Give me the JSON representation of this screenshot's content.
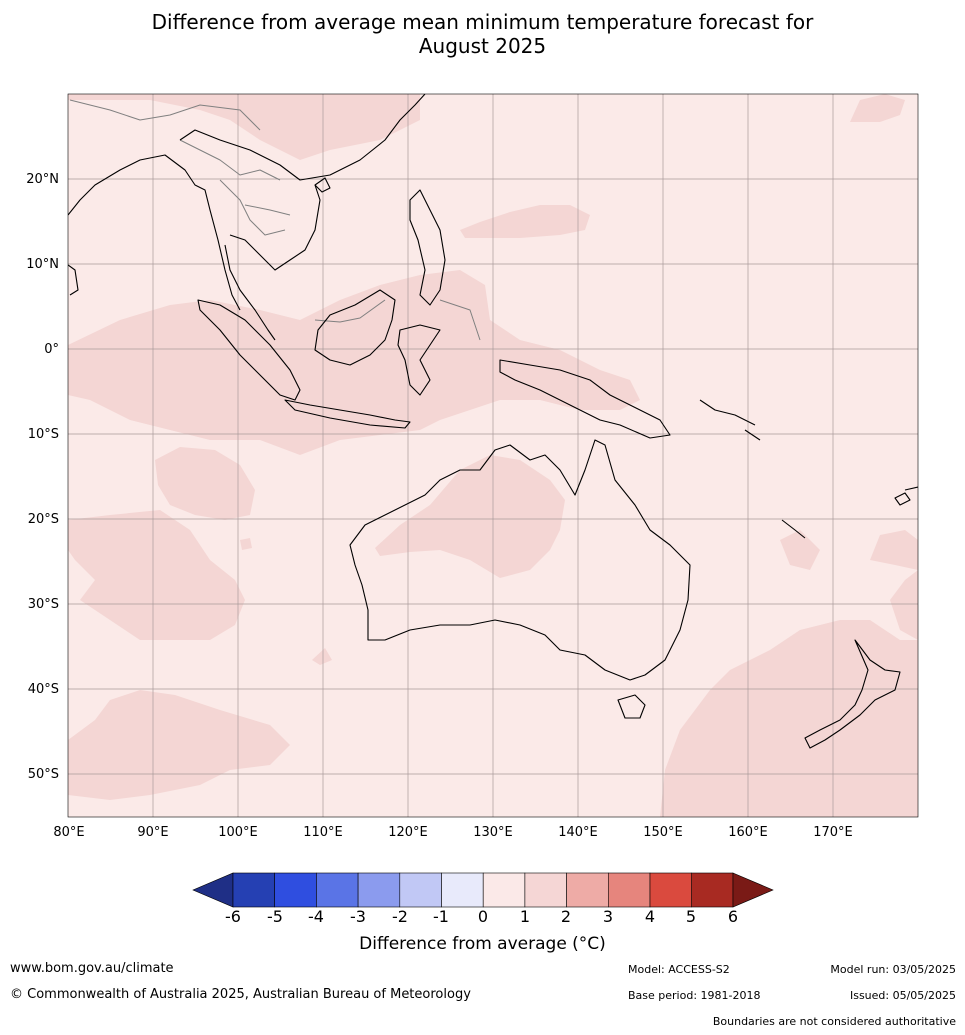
{
  "title": {
    "line1": "Difference from average mean minimum temperature forecast for",
    "line2": "August 2025"
  },
  "axes": {
    "lat_labels": [
      "20°N",
      "10°N",
      "0°",
      "10°S",
      "20°S",
      "30°S",
      "40°S",
      "50°S"
    ],
    "lon_labels": [
      "80°E",
      "90°E",
      "100°E",
      "110°E",
      "120°E",
      "130°E",
      "140°E",
      "150°E",
      "160°E",
      "170°E"
    ]
  },
  "colorbar": {
    "tick_labels": [
      "-6",
      "-5",
      "-4",
      "-3",
      "-2",
      "-1",
      "0",
      "1",
      "2",
      "3",
      "4",
      "5",
      "6"
    ],
    "colors": [
      "#1f2f86",
      "#2540b3",
      "#2f4ee0",
      "#5a74e6",
      "#8b9bee",
      "#c1c8f5",
      "#e8eafb",
      "#fbe9e8",
      "#f5d6d5",
      "#eeaba6",
      "#e6857d",
      "#da4a3e",
      "#a82a22",
      "#7a1a16"
    ],
    "title": "Difference from average (°C)"
  },
  "map": {
    "land_bg": "#fbeae8",
    "anomaly_fill": "#f4d6d4",
    "coast_color": "#000000",
    "border_color": "#808080",
    "grid_color": "#a89a9a"
  },
  "footer": {
    "website": "www.bom.gov.au/climate",
    "copyright": "© Commonwealth of Australia 2025, Australian Bureau of Meteorology",
    "model": "Model: ACCESS-S2",
    "base_period": "Base period: 1981-2018",
    "model_run": "Model run: 03/05/2025",
    "issued": "Issued: 05/05/2025",
    "disclaimer": "Boundaries are not considered authoritative"
  }
}
